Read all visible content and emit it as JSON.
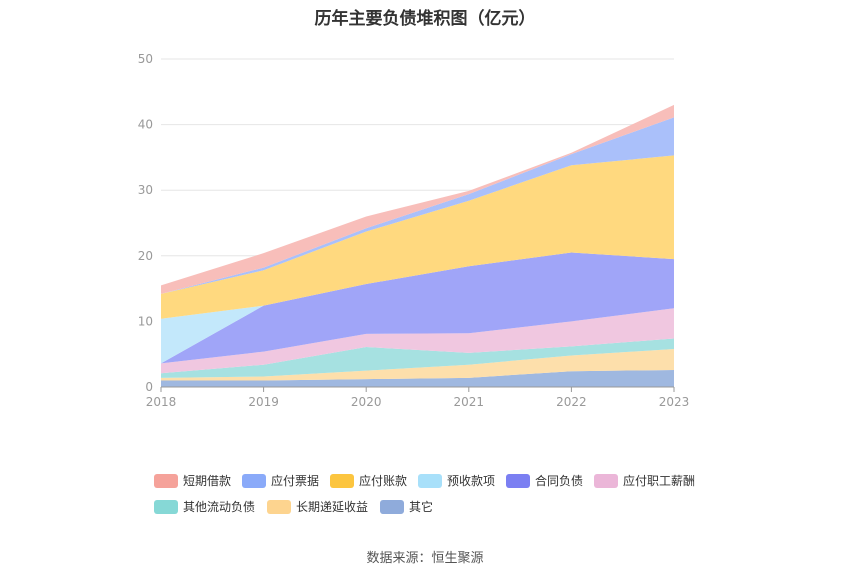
{
  "chart_data": {
    "type": "area",
    "stacked": true,
    "title": "历年主要负债堆积图（亿元）",
    "xlabel": "",
    "ylabel": "",
    "ylim": [
      0,
      50
    ],
    "yticks": [
      0,
      10,
      20,
      30,
      40,
      50
    ],
    "categories": [
      "2018",
      "2019",
      "2020",
      "2021",
      "2022",
      "2023"
    ],
    "series": [
      {
        "name": "其它",
        "color": "#9fb8e0",
        "values": [
          1.0,
          1.0,
          1.2,
          1.4,
          2.4,
          2.6
        ]
      },
      {
        "name": "长期递延收益",
        "color": "#fddfab",
        "values": [
          0.4,
          0.6,
          1.3,
          2.0,
          2.4,
          3.2
        ]
      },
      {
        "name": "其他流动负债",
        "color": "#a6e1e1",
        "values": [
          0.7,
          1.8,
          3.6,
          1.8,
          1.4,
          1.6
        ]
      },
      {
        "name": "应付职工薪酬",
        "color": "#f0c7e0",
        "values": [
          1.5,
          2.0,
          2.0,
          3.0,
          3.8,
          4.6
        ]
      },
      {
        "name": "合同负债",
        "color": "#a0a5f8",
        "values": [
          0,
          7.0,
          7.6,
          10.2,
          10.5,
          7.5
        ]
      },
      {
        "name": "预收款项",
        "color": "#c3e8fb",
        "values": [
          6.8,
          0,
          0,
          0,
          0,
          0
        ]
      },
      {
        "name": "应付账款",
        "color": "#ffd97f",
        "values": [
          3.8,
          5.4,
          8.0,
          10.0,
          13.3,
          15.8
        ]
      },
      {
        "name": "应付票据",
        "color": "#aac0fa",
        "values": [
          0,
          0.4,
          0.5,
          1.0,
          1.7,
          5.8
        ]
      },
      {
        "name": "短期借款",
        "color": "#f8beba",
        "values": [
          1.3,
          2.2,
          1.8,
          0.5,
          0.2,
          1.9
        ]
      }
    ],
    "legend": [
      {
        "name": "短期借款",
        "color": "#f5a29a"
      },
      {
        "name": "应付票据",
        "color": "#8aaaf9"
      },
      {
        "name": "应付账款",
        "color": "#fcc53f"
      },
      {
        "name": "预收款项",
        "color": "#a8e0fa"
      },
      {
        "name": "合同负债",
        "color": "#7b7ff2"
      },
      {
        "name": "应付职工薪酬",
        "color": "#ebb6d8"
      },
      {
        "name": "其他流动负债",
        "color": "#86d8d6"
      },
      {
        "name": "长期递延收益",
        "color": "#fdd48f"
      },
      {
        "name": "其它",
        "color": "#8fabdb"
      }
    ],
    "legend_position": "bottom"
  },
  "source_text": "数据来源：恒生聚源"
}
